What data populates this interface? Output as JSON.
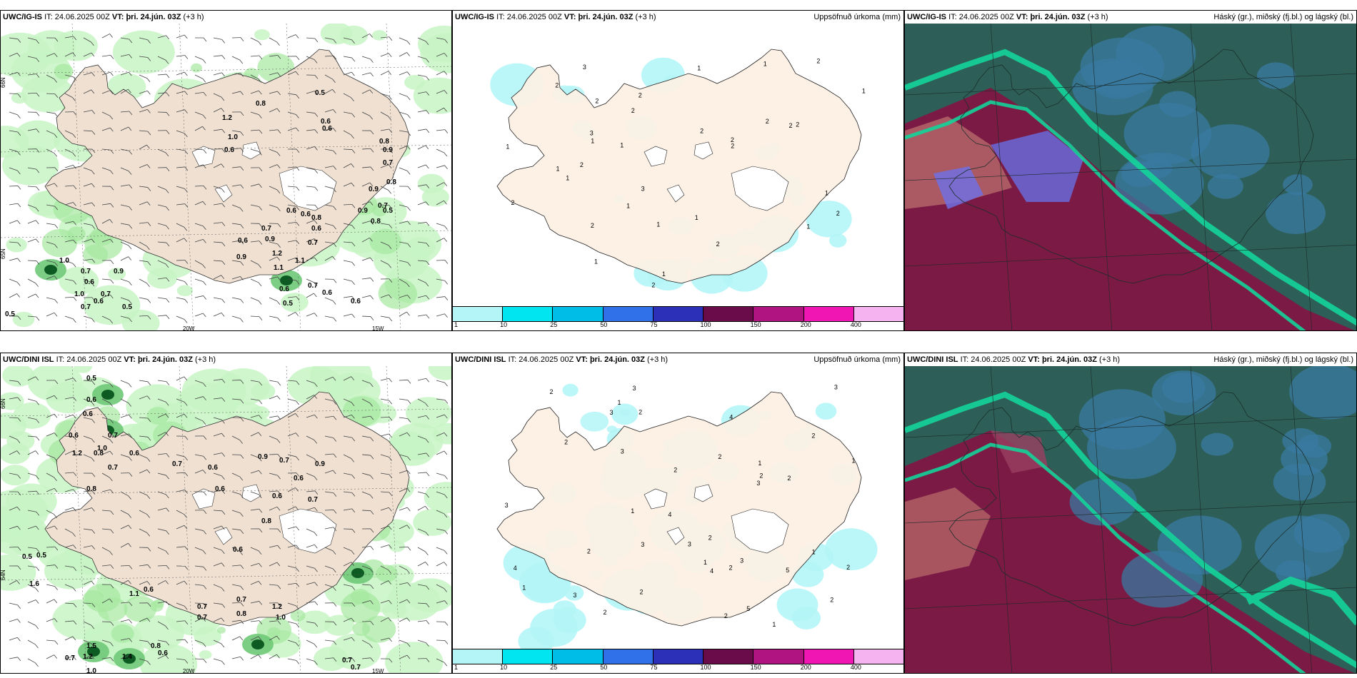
{
  "panels": {
    "top_left": {
      "model": "UWC/IG-IS",
      "it_label": "IT:",
      "it": "24.06.2025 00Z",
      "vt_label": "VT:",
      "vt": "þri. 24.jún. 03Z",
      "lead": "(+3 h)",
      "title": ""
    },
    "top_mid": {
      "model": "UWC/IG-IS",
      "it_label": "IT:",
      "it": "24.06.2025 00Z",
      "vt_label": "VT:",
      "vt": "þri. 24.jún. 03Z",
      "lead": "(+3 h)",
      "title": "Uppsöfnuð úrkoma (mm)"
    },
    "top_right": {
      "model": "UWC/IG-IS",
      "it_label": "IT:",
      "it": "24.06.2025 00Z",
      "vt_label": "VT:",
      "vt": "þri. 24.jún. 03Z",
      "lead": "(+3 h)",
      "title": "Háský (gr.), miðský (fj.bl.) og lágský (bl.)"
    },
    "bottom_left": {
      "model": "UWC/DINI ISL",
      "it_label": "IT:",
      "it": "24.06.2025 00Z",
      "vt_label": "VT:",
      "vt": "þri. 24.jún. 03Z",
      "lead": "(+3 h)",
      "title": ""
    },
    "bottom_mid": {
      "model": "UWC/DINI ISL",
      "it_label": "IT:",
      "it": "24.06.2025 00Z",
      "vt_label": "VT:",
      "vt": "þri. 24.jún. 03Z",
      "lead": "(+3 h)",
      "title": "Uppsöfnuð úrkoma (mm)"
    },
    "bottom_right": {
      "model": "UWC/DINI ISL",
      "it_label": "IT:",
      "it": "24.06.2025 00Z",
      "vt_label": "VT:",
      "vt": "þri. 24.jún. 03Z",
      "lead": "(+3 h)",
      "title": "Háský (gr.), miðský (fj.bl.) og lágský (bl.)"
    }
  },
  "axis_labels": {
    "lat66": "66N",
    "lat65": "65N",
    "lat64": "64N",
    "lon20": "20W",
    "lon15": "15W"
  },
  "colorbar": {
    "ticks": [
      "1",
      "10",
      "25",
      "50",
      "75",
      "100",
      "150",
      "200",
      "400"
    ],
    "colors": [
      "#b4f5f7",
      "#00e5f0",
      "#00bde8",
      "#3070e8",
      "#2c2fb8",
      "#6b0c4a",
      "#b01480",
      "#f016b4",
      "#f5b4ef"
    ]
  },
  "wind_values": {
    "top": [
      "0.5",
      "0.8",
      "1.2",
      "1.0",
      "0.6",
      "0.6",
      "0.6",
      "0.8",
      "0.9",
      "0.7",
      "0.8",
      "0.9",
      "0.5",
      "1.0",
      "0.7",
      "0.9",
      "0.6",
      "1.0",
      "0.7",
      "0.6",
      "0.7",
      "0.5",
      "0.6",
      "1.2",
      "1.1",
      "0.6",
      "0.6",
      "0.7",
      "0.5",
      "0.6",
      "1.1",
      "0.9",
      "0.7",
      "0.6",
      "0.8",
      "0.6",
      "0.6",
      "0.7",
      "0.9",
      "0.9",
      "0.8",
      "0.7",
      "0.5"
    ],
    "bottom": [
      "0.5",
      "0.6",
      "0.6",
      "0.6",
      "0.7",
      "0.8",
      "0.7",
      "0.7",
      "0.6",
      "0.6",
      "1.2",
      "1.0",
      "0.6",
      "0.8",
      "0.9",
      "0.7",
      "0.6",
      "0.9",
      "0.7",
      "0.6",
      "0.8",
      "0.6",
      "0.5",
      "0.5",
      "1.6",
      "0.6",
      "1.1",
      "0.7",
      "0.7",
      "0.8",
      "0.7",
      "1.2",
      "1.0",
      "1.5",
      "1.2",
      "0.7",
      "0.8",
      "0.6",
      "1.4",
      "1.0",
      "0.7",
      "0.7"
    ]
  },
  "precip_values": {
    "top": [
      "1",
      "2",
      "1",
      "1",
      "3",
      "3",
      "1",
      "2",
      "1",
      "1",
      "2",
      "1",
      "1",
      "2",
      "3",
      "2",
      "2",
      "1",
      "2",
      "1",
      "1",
      "2",
      "2",
      "1",
      "2",
      "2",
      "2",
      "1",
      "2",
      "1",
      "2",
      "2",
      "2",
      "1",
      "2"
    ],
    "bottom": [
      "1",
      "1",
      "2",
      "1",
      "3",
      "2",
      "4",
      "3",
      "5",
      "2",
      "3",
      "3",
      "2",
      "2",
      "1",
      "2",
      "4",
      "3",
      "2",
      "3",
      "2",
      "1",
      "5",
      "2",
      "2",
      "3",
      "3",
      "4",
      "2",
      "2",
      "2",
      "1",
      "3",
      "2",
      "1",
      "3",
      "2",
      "4",
      "2",
      "1"
    ]
  }
}
